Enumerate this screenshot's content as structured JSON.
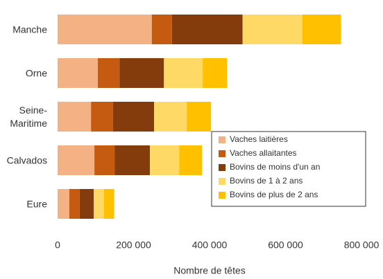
{
  "chart_data": {
    "type": "stacked_barh",
    "categories": [
      "Manche",
      "Orne",
      "Seine-Maritime",
      "Calvados",
      "Eure"
    ],
    "series": [
      {
        "name": "Vaches laitières",
        "color": "#f4b183",
        "values": [
          248000,
          106000,
          88000,
          97000,
          31000
        ]
      },
      {
        "name": "Vaches allaitantes",
        "color": "#c55a11",
        "values": [
          53000,
          57000,
          58000,
          53000,
          27000
        ]
      },
      {
        "name": "Bovins de moins d'un an",
        "color": "#843c0c",
        "values": [
          186000,
          117000,
          108000,
          93000,
          37000
        ]
      },
      {
        "name": "Bovins de 1 à 2 ans",
        "color": "#ffd966",
        "values": [
          157000,
          102000,
          86000,
          77000,
          27000
        ]
      },
      {
        "name": "Bovins de plus de 2 ans",
        "color": "#ffc000",
        "values": [
          102000,
          64000,
          64000,
          60000,
          27000
        ]
      }
    ],
    "xlabel": "Nombre de têtes",
    "xlim": [
      0,
      800000
    ],
    "xticks": [
      0,
      {
        "value": 200000,
        "label": "200 000"
      },
      {
        "value": 400000,
        "label": "400 000"
      },
      {
        "value": 600000,
        "label": "600 000"
      },
      {
        "value": 800000,
        "label": "800 000"
      }
    ],
    "legend": "lower right"
  }
}
